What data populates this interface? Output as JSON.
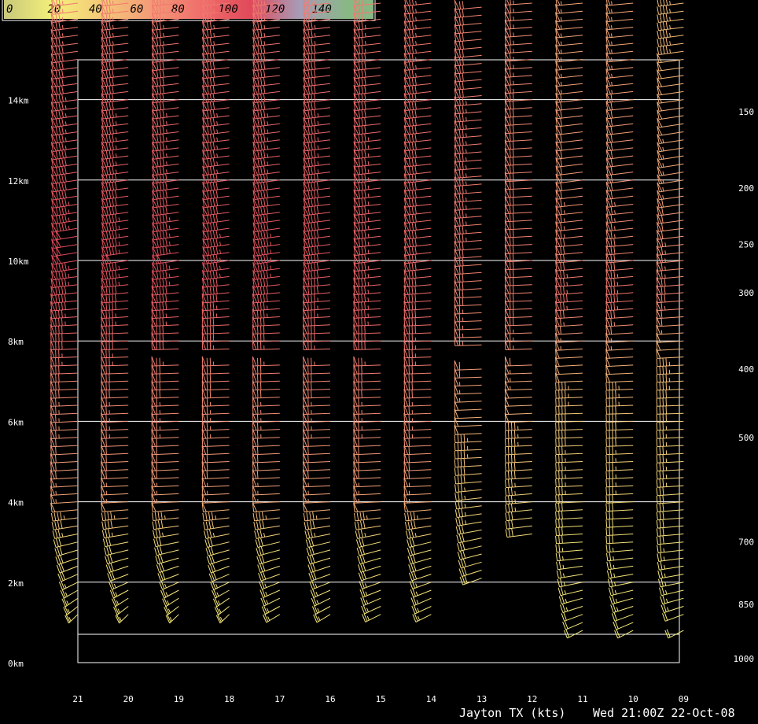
{
  "chart_data": {
    "type": "wind-profile",
    "legend": {
      "ticks": [
        "0",
        "20",
        "40",
        "60",
        "80",
        "100",
        "120",
        "140"
      ],
      "stops": [
        {
          "v": 0,
          "color": "#c8c87a"
        },
        {
          "v": 20,
          "color": "#f4f07a"
        },
        {
          "v": 40,
          "color": "#f4c878"
        },
        {
          "v": 60,
          "color": "#f49a78"
        },
        {
          "v": 80,
          "color": "#f06e6c"
        },
        {
          "v": 100,
          "color": "#e04a5a"
        },
        {
          "v": 120,
          "color": "#a79cb8"
        },
        {
          "v": 140,
          "color": "#88b884"
        }
      ]
    },
    "height_labels": [
      {
        "km": 0,
        "label": "0km"
      },
      {
        "km": 2,
        "label": "2km"
      },
      {
        "km": 4,
        "label": "4km"
      },
      {
        "km": 6,
        "label": "6km"
      },
      {
        "km": 8,
        "label": "8km"
      },
      {
        "km": 10,
        "label": "10km"
      },
      {
        "km": 12,
        "label": "12km"
      },
      {
        "km": 14,
        "label": "14km"
      }
    ],
    "pressure_labels": [
      {
        "km": 13.7,
        "label": "150"
      },
      {
        "km": 11.8,
        "label": "200"
      },
      {
        "km": 10.4,
        "label": "250"
      },
      {
        "km": 9.2,
        "label": "300"
      },
      {
        "km": 7.3,
        "label": "400"
      },
      {
        "km": 5.6,
        "label": "500"
      },
      {
        "km": 3.0,
        "label": "700"
      },
      {
        "km": 1.45,
        "label": "850"
      },
      {
        "km": 0.1,
        "label": "1000"
      }
    ],
    "hour_labels": [
      "21",
      "20",
      "19",
      "18",
      "17",
      "16",
      "15",
      "14",
      "13",
      "12",
      "11",
      "10",
      "09"
    ],
    "profiles": [
      {
        "hour": "21",
        "bottom_km": 1.2,
        "gap": [
          8.2,
          8.5
        ],
        "dir": [
          [
            1.2,
            200
          ],
          [
            2.8,
            230
          ],
          [
            4,
            260
          ],
          [
            8,
            265
          ],
          [
            10,
            245
          ],
          [
            16,
            250
          ]
        ],
        "spd": [
          [
            1.2,
            25
          ],
          [
            3,
            30
          ],
          [
            4,
            55
          ],
          [
            7,
            70
          ],
          [
            9.5,
            95
          ],
          [
            10.2,
            100
          ],
          [
            12,
            90
          ],
          [
            16,
            75
          ]
        ]
      },
      {
        "hour": "20",
        "bottom_km": 1.2,
        "gap": [
          7.5,
          7.7
        ],
        "dir": [
          [
            1.2,
            200
          ],
          [
            3,
            240
          ],
          [
            4,
            262
          ],
          [
            8,
            265
          ],
          [
            10,
            248
          ],
          [
            16,
            252
          ]
        ],
        "spd": [
          [
            1.2,
            25
          ],
          [
            3,
            30
          ],
          [
            4,
            55
          ],
          [
            7,
            70
          ],
          [
            9.5,
            95
          ],
          [
            10,
            98
          ],
          [
            12,
            88
          ],
          [
            16,
            75
          ]
        ]
      },
      {
        "hour": "19",
        "bottom_km": 1.2,
        "gap": [
          7.8,
          7.5
        ],
        "dir": [
          [
            1.2,
            200
          ],
          [
            3,
            240
          ],
          [
            4,
            262
          ],
          [
            8,
            265
          ],
          [
            10,
            248
          ],
          [
            16,
            252
          ]
        ],
        "spd": [
          [
            1.2,
            25
          ],
          [
            3,
            30
          ],
          [
            4,
            55
          ],
          [
            7,
            70
          ],
          [
            9.5,
            95
          ],
          [
            10,
            98
          ],
          [
            12,
            88
          ],
          [
            16,
            75
          ]
        ]
      },
      {
        "hour": "18",
        "bottom_km": 1.2,
        "gap": [
          7.8,
          7.5
        ],
        "dir": [
          [
            1.2,
            200
          ],
          [
            3,
            235
          ],
          [
            4,
            262
          ],
          [
            8,
            265
          ],
          [
            10,
            248
          ],
          [
            16,
            252
          ]
        ],
        "spd": [
          [
            1.2,
            25
          ],
          [
            3,
            30
          ],
          [
            4,
            55
          ],
          [
            7,
            70
          ],
          [
            9.5,
            92
          ],
          [
            10,
            95
          ],
          [
            12,
            88
          ],
          [
            16,
            75
          ]
        ]
      },
      {
        "hour": "17",
        "bottom_km": 1.2,
        "gap": [
          7.8,
          7.5
        ],
        "dir": [
          [
            1.2,
            210
          ],
          [
            3,
            235
          ],
          [
            4,
            262
          ],
          [
            8,
            265
          ],
          [
            10,
            248
          ],
          [
            16,
            252
          ]
        ],
        "spd": [
          [
            1.2,
            25
          ],
          [
            3,
            30
          ],
          [
            4,
            55
          ],
          [
            7,
            70
          ],
          [
            9.5,
            92
          ],
          [
            10,
            95
          ],
          [
            12,
            88
          ],
          [
            16,
            75
          ]
        ]
      },
      {
        "hour": "16",
        "bottom_km": 1.2,
        "gap": [
          7.8,
          7.5
        ],
        "dir": [
          [
            1.2,
            210
          ],
          [
            3,
            235
          ],
          [
            4,
            262
          ],
          [
            8,
            265
          ],
          [
            10,
            250
          ],
          [
            16,
            252
          ]
        ],
        "spd": [
          [
            1.2,
            25
          ],
          [
            3,
            30
          ],
          [
            4,
            55
          ],
          [
            7,
            70
          ],
          [
            9.5,
            90
          ],
          [
            10,
            92
          ],
          [
            12,
            88
          ],
          [
            16,
            75
          ]
        ]
      },
      {
        "hour": "15",
        "bottom_km": 1.2,
        "gap": [
          7.8,
          7.5
        ],
        "dir": [
          [
            1.2,
            215
          ],
          [
            3,
            235
          ],
          [
            4,
            262
          ],
          [
            8,
            265
          ],
          [
            10,
            252
          ],
          [
            16,
            252
          ]
        ],
        "spd": [
          [
            1.2,
            25
          ],
          [
            3,
            30
          ],
          [
            4,
            55
          ],
          [
            7,
            70
          ],
          [
            8.5,
            85
          ],
          [
            10,
            85
          ],
          [
            12,
            85
          ],
          [
            16,
            75
          ]
        ]
      },
      {
        "hour": "14",
        "bottom_km": 1.2,
        "gap": [
          7.0,
          6.9
        ],
        "dir": [
          [
            1.2,
            215
          ],
          [
            3,
            235
          ],
          [
            4,
            262
          ],
          [
            8,
            265
          ],
          [
            10,
            252
          ],
          [
            16,
            252
          ]
        ],
        "spd": [
          [
            1.2,
            25
          ],
          [
            3,
            30
          ],
          [
            4,
            55
          ],
          [
            7,
            70
          ],
          [
            8.5,
            80
          ],
          [
            10,
            82
          ],
          [
            12,
            82
          ],
          [
            16,
            75
          ]
        ]
      },
      {
        "hour": "13",
        "bottom_km": 2.1,
        "gap": [
          7.8,
          7.5
        ],
        "dir": [
          [
            2.1,
            225
          ],
          [
            3.5,
            245
          ],
          [
            5,
            262
          ],
          [
            8,
            265
          ],
          [
            10,
            258
          ],
          [
            16,
            255
          ]
        ],
        "spd": [
          [
            2.1,
            28
          ],
          [
            4,
            35
          ],
          [
            6,
            50
          ],
          [
            8,
            65
          ],
          [
            10,
            72
          ],
          [
            12,
            75
          ],
          [
            16,
            70
          ]
        ]
      },
      {
        "hour": "12",
        "bottom_km": 3.2,
        "gap": [
          7.8,
          7.5
        ],
        "dir": [
          [
            3.2,
            250
          ],
          [
            5,
            262
          ],
          [
            8,
            265
          ],
          [
            10,
            262
          ],
          [
            16,
            258
          ]
        ],
        "spd": [
          [
            3.2,
            30
          ],
          [
            5,
            40
          ],
          [
            7,
            55
          ],
          [
            8.5,
            70
          ],
          [
            10,
            72
          ],
          [
            12,
            70
          ],
          [
            16,
            65
          ]
        ]
      },
      {
        "hour": "11",
        "bottom_km": 0.8,
        "gap": [
          2.1,
          3.0
        ],
        "dir": [
          [
            0.8,
            215
          ],
          [
            2,
            240
          ],
          [
            3,
            260
          ],
          [
            6,
            265
          ],
          [
            9,
            258
          ],
          [
            12,
            250
          ],
          [
            16,
            255
          ]
        ],
        "spd": [
          [
            0.8,
            20
          ],
          [
            2,
            25
          ],
          [
            3,
            28
          ],
          [
            6,
            40
          ],
          [
            8,
            55
          ],
          [
            9,
            78
          ],
          [
            10,
            70
          ],
          [
            12,
            60
          ],
          [
            16,
            55
          ]
        ]
      },
      {
        "hour": "10",
        "bottom_km": 0.8,
        "gap": [
          2.1,
          3.0
        ],
        "dir": [
          [
            0.8,
            215
          ],
          [
            2,
            240
          ],
          [
            3,
            260
          ],
          [
            6,
            265
          ],
          [
            9,
            258
          ],
          [
            12,
            250
          ],
          [
            16,
            255
          ]
        ],
        "spd": [
          [
            0.8,
            20
          ],
          [
            2,
            25
          ],
          [
            3,
            28
          ],
          [
            6,
            40
          ],
          [
            8,
            55
          ],
          [
            9,
            78
          ],
          [
            10,
            70
          ],
          [
            12,
            60
          ],
          [
            16,
            55
          ]
        ]
      },
      {
        "hour": "09",
        "bottom_km": 0.8,
        "gap": [
          1.1,
          0.9
        ],
        "dir": [
          [
            0.8,
            215
          ],
          [
            2,
            240
          ],
          [
            3,
            255
          ],
          [
            6,
            265
          ],
          [
            9,
            258
          ],
          [
            12,
            245
          ],
          [
            16,
            250
          ]
        ],
        "spd": [
          [
            0.8,
            20
          ],
          [
            2,
            25
          ],
          [
            3,
            28
          ],
          [
            6,
            38
          ],
          [
            8,
            50
          ],
          [
            9,
            70
          ],
          [
            10,
            65
          ],
          [
            12,
            55
          ],
          [
            16,
            45
          ]
        ]
      }
    ],
    "grid": true
  },
  "footer": {
    "station": "Jayton TX (kts)",
    "datetime": "Wed 21:00Z 22-Oct-08"
  }
}
